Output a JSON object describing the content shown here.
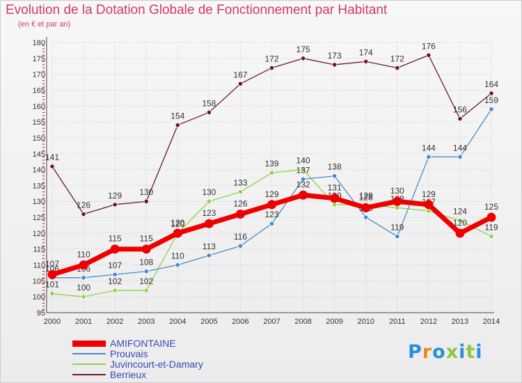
{
  "header": {
    "title": "Evolution de la Dotation Globale de Fonctionnement par Habitant",
    "subtitle": "(en € et par an)"
  },
  "colors": {
    "title": "#d2386e",
    "legend_text": "#3a47b8",
    "grid": "#bbbbbb",
    "axis_red_ticks": "#e00000"
  },
  "chart_data": {
    "type": "line",
    "title": "Evolution de la Dotation Globale de Fonctionnement par Habitant",
    "subtitle": "(en € et par an)",
    "x": [
      2000,
      2001,
      2002,
      2003,
      2004,
      2005,
      2006,
      2007,
      2008,
      2009,
      2010,
      2011,
      2012,
      2013,
      2014
    ],
    "ylim": [
      95,
      180
    ],
    "yticks": [
      95,
      100,
      105,
      110,
      115,
      120,
      125,
      130,
      135,
      140,
      145,
      150,
      155,
      160,
      165,
      170,
      175,
      180
    ],
    "grid": true,
    "legend_position": "bottom-left",
    "series": [
      {
        "name": "Berrieux",
        "color": "#6b1a22",
        "values": [
          141,
          126,
          129,
          130,
          154,
          158,
          167,
          172,
          175,
          173,
          174,
          172,
          176,
          156,
          164
        ]
      },
      {
        "name": "Juvincourt-et-Damary",
        "color": "#8fd24a",
        "values": [
          101,
          100,
          102,
          102,
          120,
          130,
          133,
          139,
          140,
          129,
          129,
          128,
          127,
          124,
          119
        ]
      },
      {
        "name": "Prouvais",
        "color": "#4a8ac8",
        "values": [
          106,
          106,
          107,
          108,
          110,
          113,
          116,
          123,
          137,
          138,
          125,
          119,
          144,
          144,
          159
        ]
      },
      {
        "name": "AMIFONTAINE",
        "color": "#ee0000",
        "values": [
          107,
          110,
          115,
          115,
          120,
          123,
          126,
          129,
          132,
          131,
          128,
          130,
          129,
          120,
          125
        ]
      }
    ]
  },
  "legend": [
    {
      "label": "AMIFONTAINE",
      "color": "#ee0000",
      "thick": true
    },
    {
      "label": "Prouvais",
      "color": "#4a8ac8",
      "thick": false
    },
    {
      "label": "Juvincourt-et-Damary",
      "color": "#8fd24a",
      "thick": false
    },
    {
      "label": "Berrieux",
      "color": "#6b1a22",
      "thick": false
    }
  ],
  "logo": {
    "text": "Proxiti",
    "colors": [
      "#2a8fd8",
      "#f08a1c",
      "#2a8fd8",
      "#8cc63f",
      "#2a8fd8",
      "#8cc63f",
      "#2a8fd8"
    ]
  }
}
